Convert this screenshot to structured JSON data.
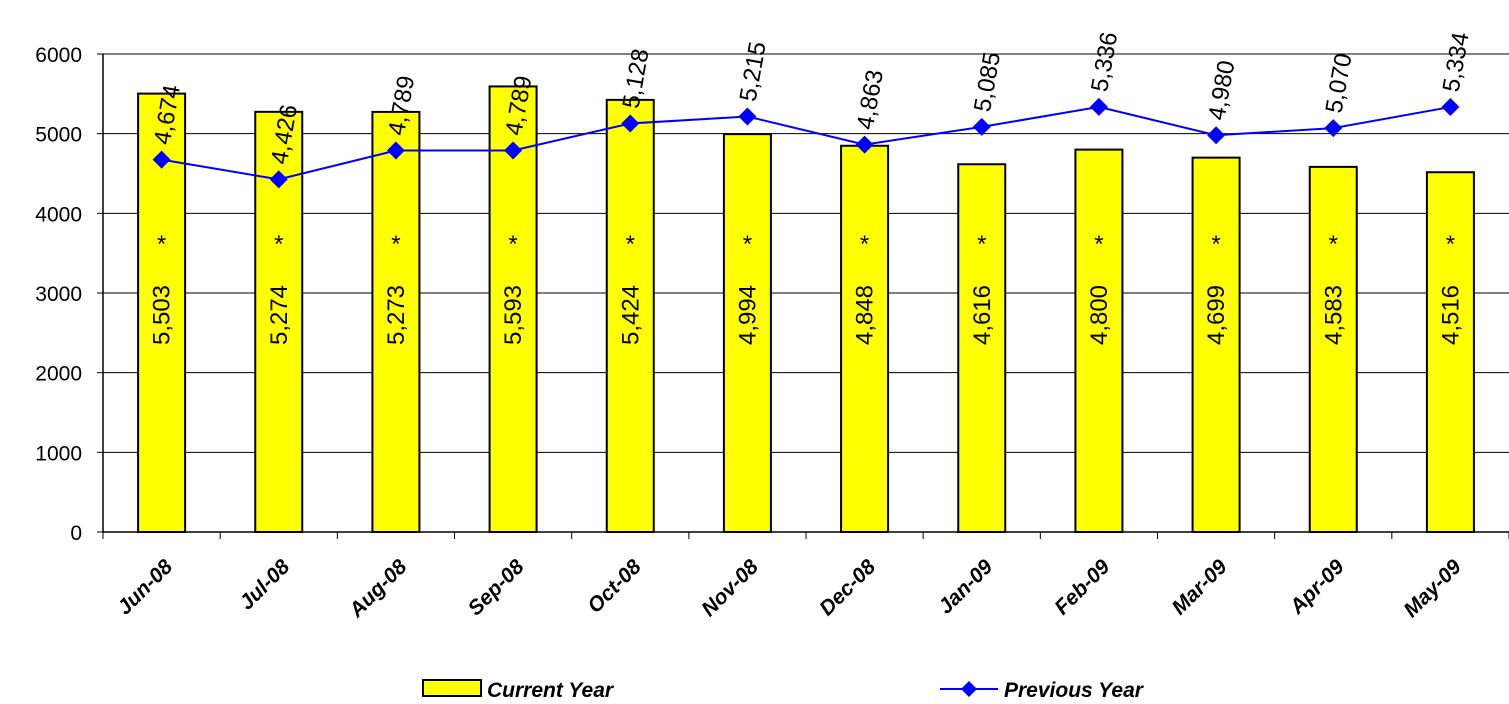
{
  "chart_data": {
    "type": "bar",
    "categories": [
      "Jun-08",
      "Jul-08",
      "Aug-08",
      "Sep-08",
      "Oct-08",
      "Nov-08",
      "Dec-08",
      "Jan-09",
      "Feb-09",
      "Mar-09",
      "Apr-09",
      "May-09"
    ],
    "series": [
      {
        "name": "Current Year",
        "type": "bar",
        "values": [
          5503,
          5274,
          5273,
          5593,
          5424,
          4994,
          4848,
          4616,
          4800,
          4699,
          4583,
          4516
        ],
        "labels": [
          "5,503",
          "5,274",
          "5,273",
          "5,593",
          "5,424",
          "4,994",
          "4,848",
          "4,616",
          "4,800",
          "4,699",
          "4,583",
          "4,516"
        ],
        "color": "#ffff00"
      },
      {
        "name": "Previous Year",
        "type": "line",
        "values": [
          4674,
          4426,
          4789,
          4789,
          5128,
          5215,
          4863,
          5085,
          5336,
          4980,
          5070,
          5334
        ],
        "labels": [
          "4,674",
          "4,426",
          "4,789",
          "4,789",
          "5,128",
          "5,215",
          "4,863",
          "5,085",
          "5,336",
          "4,980",
          "5,070",
          "5,334"
        ],
        "color": "#0000ff"
      }
    ],
    "bar_marker": "*",
    "ylim": [
      0,
      6000
    ],
    "yticks": [
      "0",
      "1000",
      "2000",
      "3000",
      "4000",
      "5000",
      "6000"
    ],
    "grid": true,
    "legend": "bottom"
  }
}
